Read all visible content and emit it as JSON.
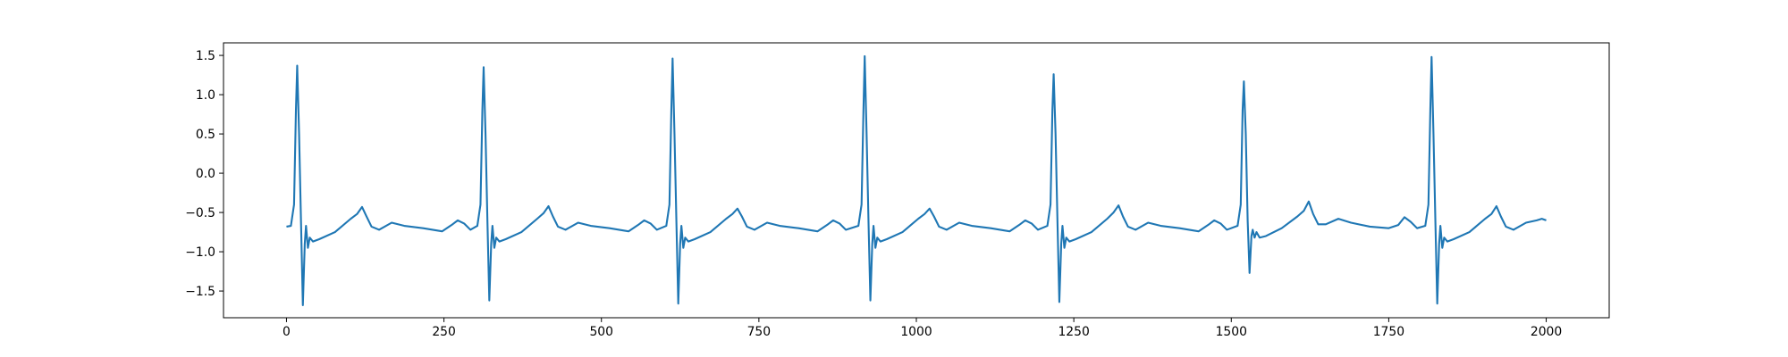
{
  "chart_data": {
    "type": "line",
    "color": "#1f77b4",
    "xlim": [
      -100,
      2100
    ],
    "ylim": [
      -1.84,
      1.66
    ],
    "xticks": [
      0,
      250,
      500,
      750,
      1000,
      1250,
      1500,
      1750,
      2000
    ],
    "yticks": [
      {
        "value": -1.5,
        "label": "−1.5"
      },
      {
        "value": -1.0,
        "label": "−1.0"
      },
      {
        "value": -0.5,
        "label": "−0.5"
      },
      {
        "value": 0.0,
        "label": "0.0"
      },
      0.5,
      {
        "value": 1.0,
        "label": "1.0"
      },
      1.5
    ],
    "x": [
      0,
      7,
      12,
      15,
      17,
      20,
      23,
      26,
      29,
      31,
      34,
      37,
      42,
      52,
      77,
      102,
      112,
      120,
      127,
      135,
      147,
      167,
      187,
      217,
      247,
      262,
      272,
      282,
      292,
      303,
      308,
      311,
      313,
      316,
      319,
      322,
      325,
      327,
      330,
      333,
      338,
      348,
      373,
      398,
      408,
      416,
      423,
      431,
      443,
      463,
      483,
      513,
      543,
      558,
      568,
      578,
      588,
      603,
      608,
      611,
      613,
      616,
      619,
      622,
      625,
      627,
      630,
      633,
      638,
      648,
      673,
      698,
      708,
      716,
      723,
      731,
      743,
      763,
      783,
      813,
      843,
      858,
      868,
      878,
      888,
      908,
      913,
      916,
      918,
      921,
      924,
      927,
      930,
      932,
      935,
      938,
      943,
      953,
      978,
      1003,
      1013,
      1021,
      1028,
      1036,
      1048,
      1068,
      1088,
      1118,
      1148,
      1163,
      1173,
      1183,
      1193,
      1208,
      1213,
      1216,
      1218,
      1221,
      1224,
      1227,
      1230,
      1232,
      1235,
      1238,
      1243,
      1253,
      1278,
      1303,
      1313,
      1321,
      1328,
      1336,
      1348,
      1368,
      1388,
      1418,
      1448,
      1463,
      1473,
      1483,
      1493,
      1510,
      1515,
      1518,
      1520,
      1523,
      1526,
      1529,
      1532,
      1534,
      1537,
      1540,
      1545,
      1555,
      1580,
      1605,
      1615,
      1623,
      1630,
      1638,
      1650,
      1670,
      1690,
      1720,
      1750,
      1765,
      1775,
      1785,
      1795,
      1808,
      1813,
      1816,
      1818,
      1821,
      1824,
      1827,
      1830,
      1832,
      1835,
      1838,
      1843,
      1853,
      1878,
      1903,
      1913,
      1921,
      1928,
      1936,
      1948,
      1968,
      1985,
      1993,
      2000
    ],
    "values": [
      -0.68,
      -0.67,
      -0.4,
      0.8,
      1.37,
      0.5,
      -0.6,
      -1.68,
      -0.9,
      -0.67,
      -0.95,
      -0.82,
      -0.87,
      -0.84,
      -0.75,
      -0.58,
      -0.52,
      -0.43,
      -0.55,
      -0.68,
      -0.72,
      -0.63,
      -0.67,
      -0.7,
      -0.74,
      -0.66,
      -0.6,
      -0.64,
      -0.72,
      -0.67,
      -0.4,
      0.8,
      1.35,
      0.5,
      -0.6,
      -1.62,
      -0.9,
      -0.67,
      -0.95,
      -0.82,
      -0.87,
      -0.84,
      -0.75,
      -0.58,
      -0.51,
      -0.42,
      -0.55,
      -0.68,
      -0.72,
      -0.63,
      -0.67,
      -0.7,
      -0.74,
      -0.66,
      -0.6,
      -0.64,
      -0.72,
      -0.67,
      -0.4,
      0.8,
      1.46,
      0.5,
      -0.6,
      -1.66,
      -0.9,
      -0.67,
      -0.95,
      -0.82,
      -0.87,
      -0.84,
      -0.75,
      -0.58,
      -0.52,
      -0.45,
      -0.55,
      -0.68,
      -0.72,
      -0.63,
      -0.67,
      -0.7,
      -0.74,
      -0.66,
      -0.6,
      -0.64,
      -0.72,
      -0.67,
      -0.4,
      0.8,
      1.49,
      0.5,
      -0.6,
      -1.62,
      -0.9,
      -0.67,
      -0.95,
      -0.82,
      -0.87,
      -0.84,
      -0.75,
      -0.58,
      -0.52,
      -0.45,
      -0.55,
      -0.68,
      -0.72,
      -0.63,
      -0.67,
      -0.7,
      -0.74,
      -0.66,
      -0.6,
      -0.64,
      -0.72,
      -0.67,
      -0.4,
      0.8,
      1.26,
      0.5,
      -0.6,
      -1.64,
      -0.9,
      -0.67,
      -0.95,
      -0.82,
      -0.87,
      -0.84,
      -0.75,
      -0.58,
      -0.5,
      -0.41,
      -0.55,
      -0.68,
      -0.72,
      -0.63,
      -0.67,
      -0.7,
      -0.74,
      -0.66,
      -0.6,
      -0.64,
      -0.72,
      -0.67,
      -0.4,
      0.8,
      1.17,
      0.5,
      -0.6,
      -1.27,
      -0.8,
      -0.72,
      -0.82,
      -0.75,
      -0.82,
      -0.8,
      -0.7,
      -0.55,
      -0.48,
      -0.36,
      -0.52,
      -0.65,
      -0.65,
      -0.58,
      -0.63,
      -0.68,
      -0.7,
      -0.66,
      -0.56,
      -0.62,
      -0.7,
      -0.67,
      -0.4,
      0.8,
      1.48,
      0.5,
      -0.6,
      -1.66,
      -0.9,
      -0.67,
      -0.95,
      -0.82,
      -0.87,
      -0.84,
      -0.75,
      -0.58,
      -0.52,
      -0.42,
      -0.55,
      -0.68,
      -0.72,
      -0.63,
      -0.6,
      -0.58,
      -0.6
    ]
  }
}
